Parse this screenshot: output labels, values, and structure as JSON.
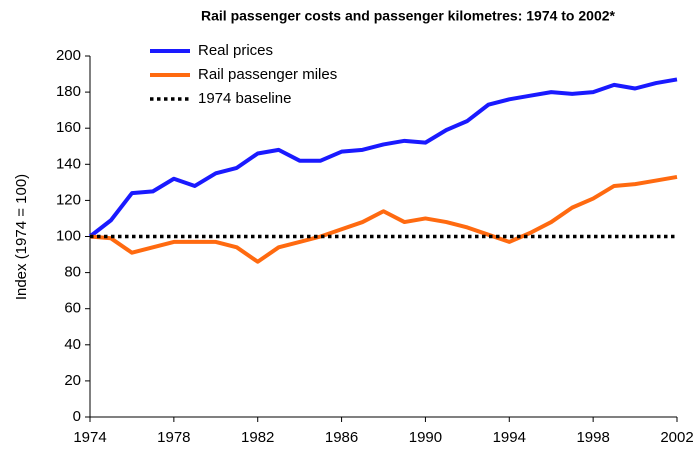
{
  "chart_data": {
    "type": "line",
    "title": "Rail passenger costs and passenger kilometres: 1974 to 2002*",
    "y_label": "Index (1974 = 100)",
    "x": [
      1974,
      1975,
      1976,
      1977,
      1978,
      1979,
      1980,
      1981,
      1982,
      1983,
      1984,
      1985,
      1986,
      1987,
      1988,
      1989,
      1990,
      1991,
      1992,
      1993,
      1994,
      1995,
      1996,
      1997,
      1998,
      1999,
      2000,
      2001,
      2002
    ],
    "series": [
      {
        "name": "Real prices",
        "color": "#1a1aff",
        "dash": "solid",
        "values": [
          100,
          109,
          124,
          125,
          132,
          128,
          135,
          138,
          146,
          148,
          142,
          142,
          147,
          148,
          151,
          153,
          152,
          159,
          164,
          173,
          176,
          178,
          180,
          179,
          180,
          184,
          182,
          185,
          187
        ]
      },
      {
        "name": "Rail passenger miles",
        "color": "#ff6a10",
        "dash": "solid",
        "values": [
          100,
          99,
          91,
          94,
          97,
          97,
          97,
          94,
          86,
          94,
          97,
          100,
          104,
          108,
          114,
          108,
          110,
          108,
          105,
          101,
          97,
          102,
          108,
          116,
          121,
          128,
          129,
          131,
          133
        ]
      },
      {
        "name": "1974 baseline",
        "color": "#000000",
        "dash": "dotted",
        "values": [
          100,
          100,
          100,
          100,
          100,
          100,
          100,
          100,
          100,
          100,
          100,
          100,
          100,
          100,
          100,
          100,
          100,
          100,
          100,
          100,
          100,
          100,
          100,
          100,
          100,
          100,
          100,
          100,
          100
        ]
      }
    ],
    "xlim": [
      1974,
      2002
    ],
    "xticks": [
      1974,
      1978,
      1982,
      1986,
      1990,
      1994,
      1998,
      2002
    ],
    "ylim": [
      0,
      200
    ],
    "yticks": [
      0,
      20,
      40,
      60,
      80,
      100,
      120,
      140,
      160,
      180,
      200
    ],
    "legend": "top-left"
  }
}
